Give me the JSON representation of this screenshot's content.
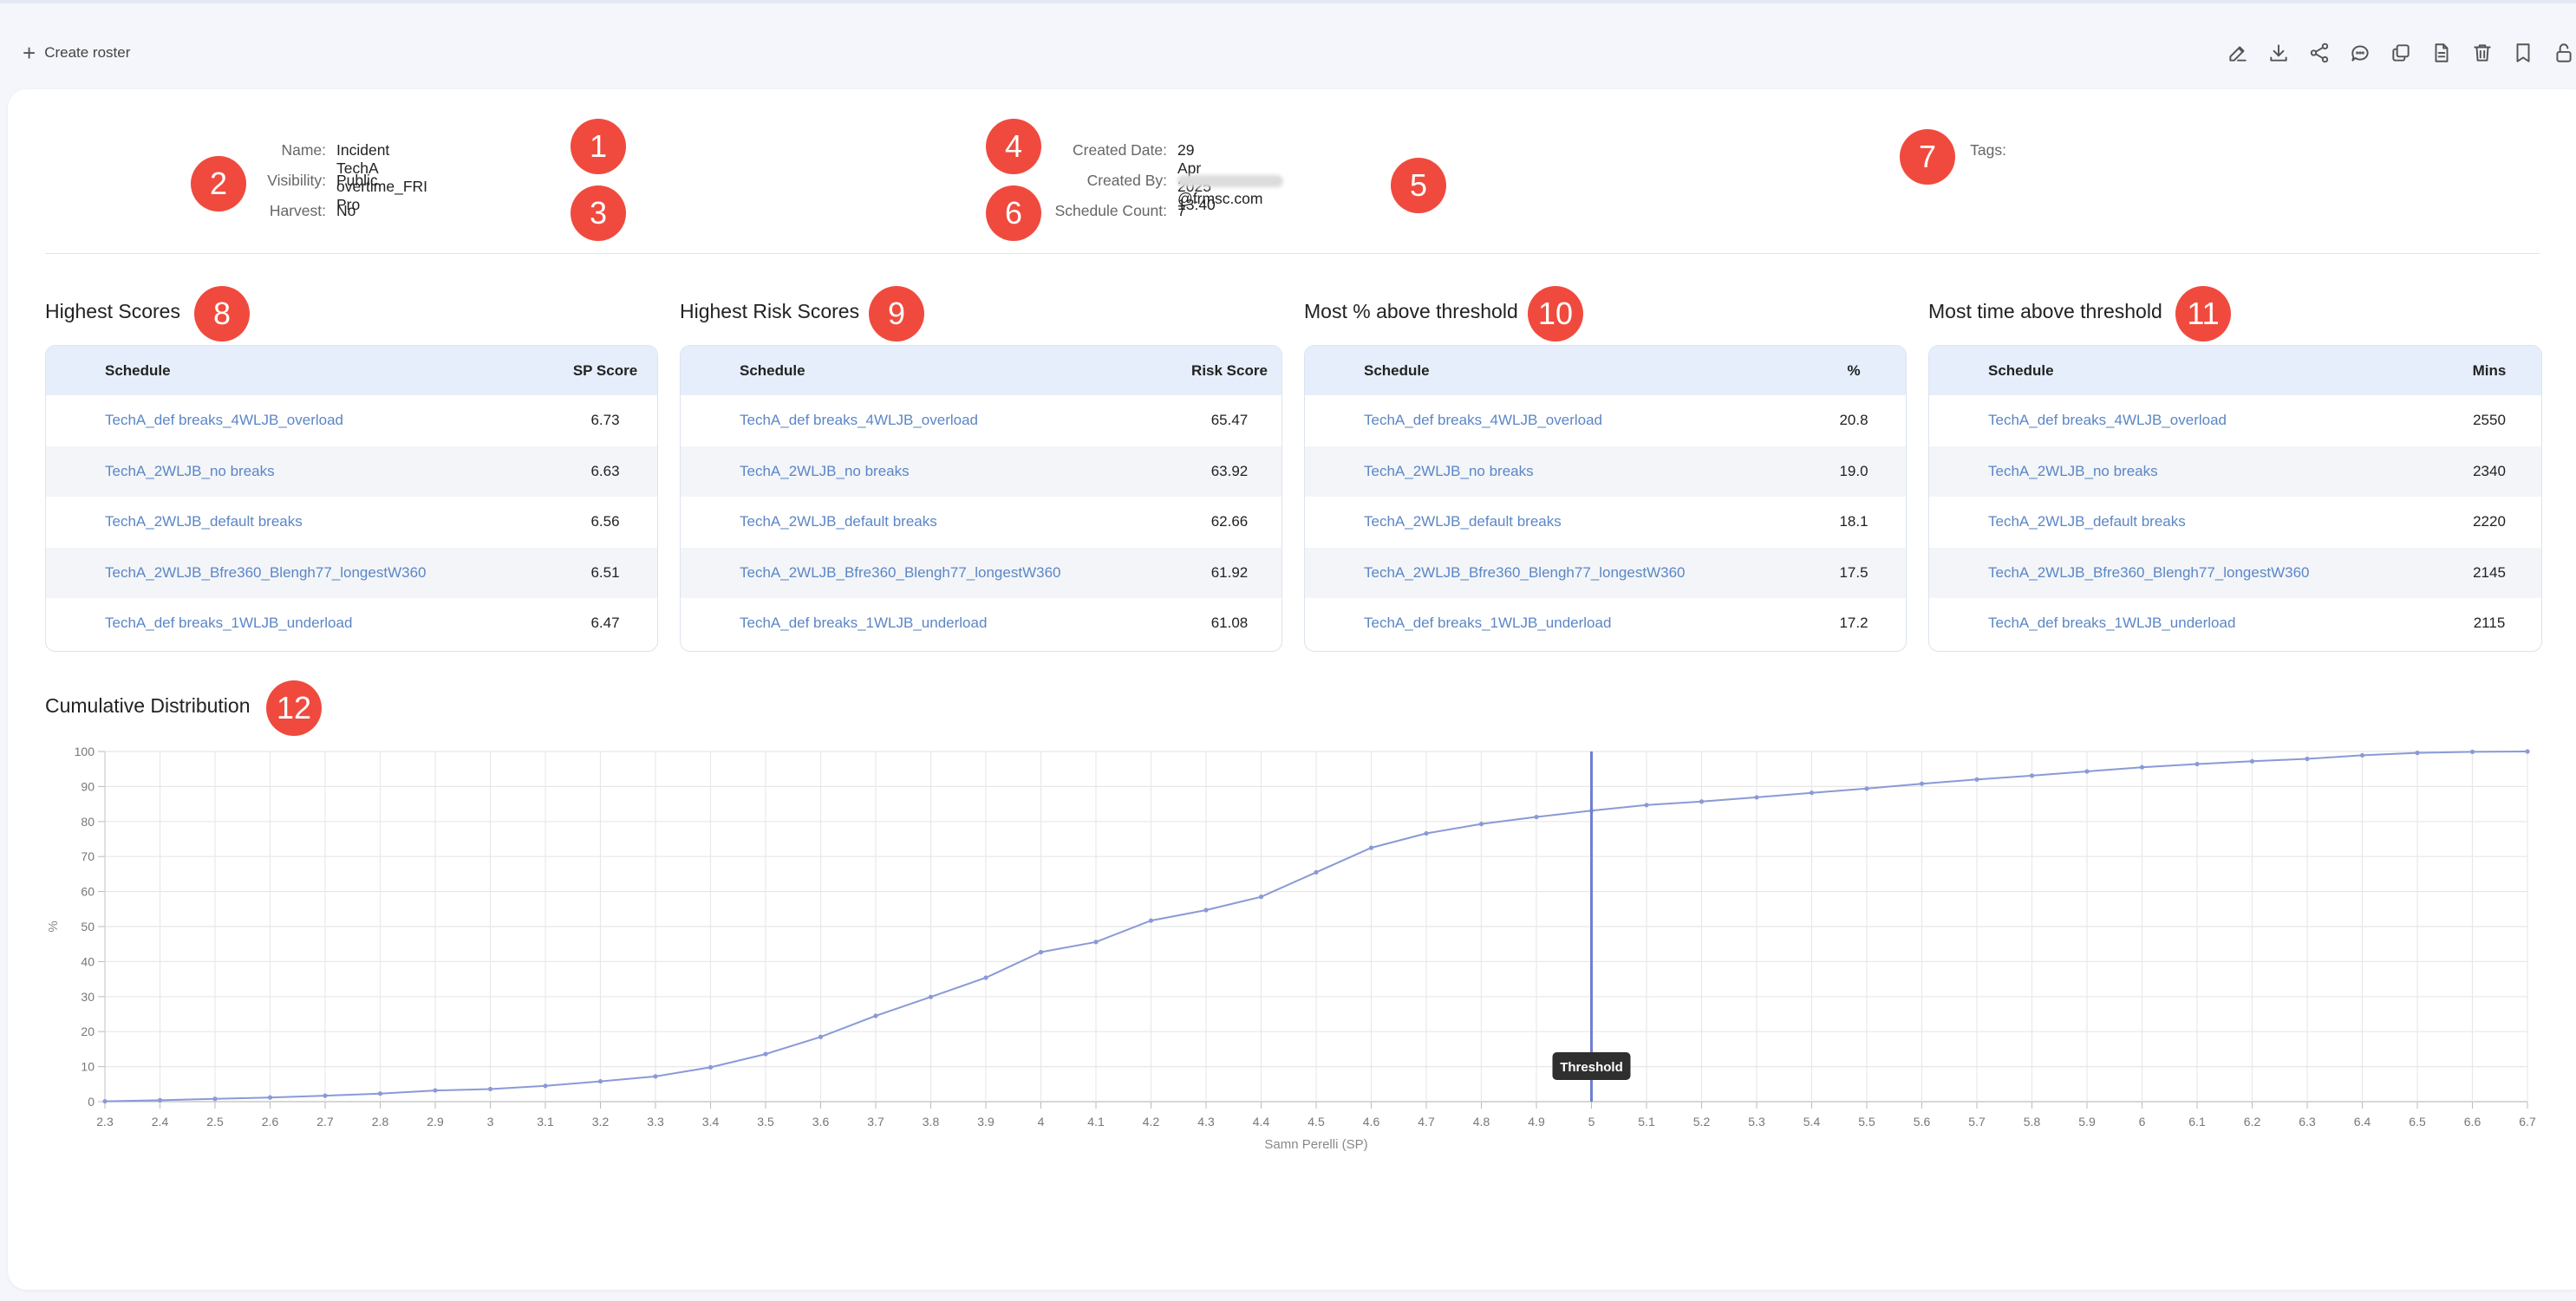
{
  "toolbar": {
    "create_label": "Create roster",
    "icons": [
      "pencil-icon",
      "download-icon",
      "share-icon",
      "comment-icon",
      "copy-icon",
      "document-icon",
      "trash-icon",
      "bookmark-icon",
      "lock-icon"
    ]
  },
  "info": {
    "name_label": "Name:",
    "name_value": "Incident TechA overtime_FRI Pro",
    "visibility_label": "Visibility:",
    "visibility_value": "Public",
    "harvest_label": "Harvest:",
    "harvest_value": "No",
    "created_date_label": "Created Date:",
    "created_date_value": "29 Apr 2025 13:40",
    "created_by_label": "Created By:",
    "created_by_value": "@frmsc.com",
    "schedule_count_label": "Schedule Count:",
    "schedule_count_value": "7",
    "tags_label": "Tags:"
  },
  "badges": [
    "1",
    "2",
    "3",
    "4",
    "5",
    "6",
    "7",
    "8",
    "9",
    "10",
    "11",
    "12"
  ],
  "tables": [
    {
      "title": "Highest Scores",
      "col1": "Schedule",
      "col2": "SP Score",
      "rows": [
        {
          "name": "TechA_def breaks_4WLJB_overload",
          "value": "6.73"
        },
        {
          "name": "TechA_2WLJB_no breaks",
          "value": "6.63"
        },
        {
          "name": "TechA_2WLJB_default breaks",
          "value": "6.56"
        },
        {
          "name": "TechA_2WLJB_Bfre360_Blengh77_longestW360",
          "value": "6.51"
        },
        {
          "name": "TechA_def breaks_1WLJB_underload",
          "value": "6.47"
        }
      ]
    },
    {
      "title": "Highest Risk Scores",
      "col1": "Schedule",
      "col2": "Risk Score",
      "rows": [
        {
          "name": "TechA_def breaks_4WLJB_overload",
          "value": "65.47"
        },
        {
          "name": "TechA_2WLJB_no breaks",
          "value": "63.92"
        },
        {
          "name": "TechA_2WLJB_default breaks",
          "value": "62.66"
        },
        {
          "name": "TechA_2WLJB_Bfre360_Blengh77_longestW360",
          "value": "61.92"
        },
        {
          "name": "TechA_def breaks_1WLJB_underload",
          "value": "61.08"
        }
      ]
    },
    {
      "title": "Most % above threshold",
      "col1": "Schedule",
      "col2": "%",
      "rows": [
        {
          "name": "TechA_def breaks_4WLJB_overload",
          "value": "20.8"
        },
        {
          "name": "TechA_2WLJB_no breaks",
          "value": "19.0"
        },
        {
          "name": "TechA_2WLJB_default breaks",
          "value": "18.1"
        },
        {
          "name": "TechA_2WLJB_Bfre360_Blengh77_longestW360",
          "value": "17.5"
        },
        {
          "name": "TechA_def breaks_1WLJB_underload",
          "value": "17.2"
        }
      ]
    },
    {
      "title": "Most time above threshold",
      "col1": "Schedule",
      "col2": "Mins",
      "rows": [
        {
          "name": "TechA_def breaks_4WLJB_overload",
          "value": "2550"
        },
        {
          "name": "TechA_2WLJB_no breaks",
          "value": "2340"
        },
        {
          "name": "TechA_2WLJB_default breaks",
          "value": "2220"
        },
        {
          "name": "TechA_2WLJB_Bfre360_Blengh77_longestW360",
          "value": "2145"
        },
        {
          "name": "TechA_def breaks_1WLJB_underload",
          "value": "2115"
        }
      ]
    }
  ],
  "chart_section_title": "Cumulative Distribution",
  "colors": {
    "badge": "#f04a3e",
    "link": "#5b86c6",
    "line": "#8a9ad6",
    "threshold": "#6f7fd0",
    "table_header": "#e5eefa"
  },
  "chart_data": {
    "type": "line",
    "title": "Cumulative Distribution",
    "xlabel": "Samn Perelli (SP)",
    "ylabel": "%",
    "xlim": [
      2.3,
      6.7
    ],
    "ylim": [
      0,
      100
    ],
    "x_ticks": [
      "2.3",
      "2.4",
      "2.5",
      "2.6",
      "2.7",
      "2.8",
      "2.9",
      "3",
      "3.1",
      "3.2",
      "3.3",
      "3.4",
      "3.5",
      "3.6",
      "3.7",
      "3.8",
      "3.9",
      "4",
      "4.1",
      "4.2",
      "4.3",
      "4.4",
      "4.5",
      "4.6",
      "4.7",
      "4.8",
      "4.9",
      "5",
      "5.1",
      "5.2",
      "5.3",
      "5.4",
      "5.5",
      "5.6",
      "5.7",
      "5.8",
      "5.9",
      "6",
      "6.1",
      "6.2",
      "6.3",
      "6.4",
      "6.5",
      "6.6",
      "6.7"
    ],
    "y_ticks": [
      "0",
      "10",
      "20",
      "30",
      "40",
      "50",
      "60",
      "70",
      "80",
      "90",
      "100"
    ],
    "grid": true,
    "series": [
      {
        "x": [
          2.3,
          2.4,
          2.5,
          2.6,
          2.7,
          2.8,
          2.9,
          3.0,
          3.1,
          3.2,
          3.3,
          3.4,
          3.5,
          3.6,
          3.7,
          3.8,
          3.9,
          4.0,
          4.1,
          4.2,
          4.3,
          4.4,
          4.5,
          4.6,
          4.7,
          4.8,
          4.9,
          5.0,
          5.1,
          5.2,
          5.3,
          5.4,
          5.5,
          5.6,
          5.7,
          5.8,
          5.9,
          6.0,
          6.1,
          6.2,
          6.3,
          6.4,
          6.5,
          6.6,
          6.7
        ],
        "y": [
          0.1,
          0.4,
          0.8,
          1.2,
          1.7,
          2.3,
          3.2,
          3.6,
          4.5,
          5.8,
          7.2,
          9.8,
          13.6,
          18.5,
          24.5,
          29.9,
          35.4,
          42.7,
          45.6,
          51.7,
          54.7,
          58.5,
          65.5,
          72.5,
          76.6,
          79.3,
          81.3,
          83.1,
          84.7,
          85.7,
          86.9,
          88.2,
          89.4,
          90.8,
          92.0,
          93.1,
          94.3,
          95.5,
          96.4,
          97.2,
          97.9,
          98.9,
          99.6,
          99.9,
          100.0
        ]
      }
    ],
    "threshold": {
      "x": 5,
      "label": "Threshold"
    }
  }
}
